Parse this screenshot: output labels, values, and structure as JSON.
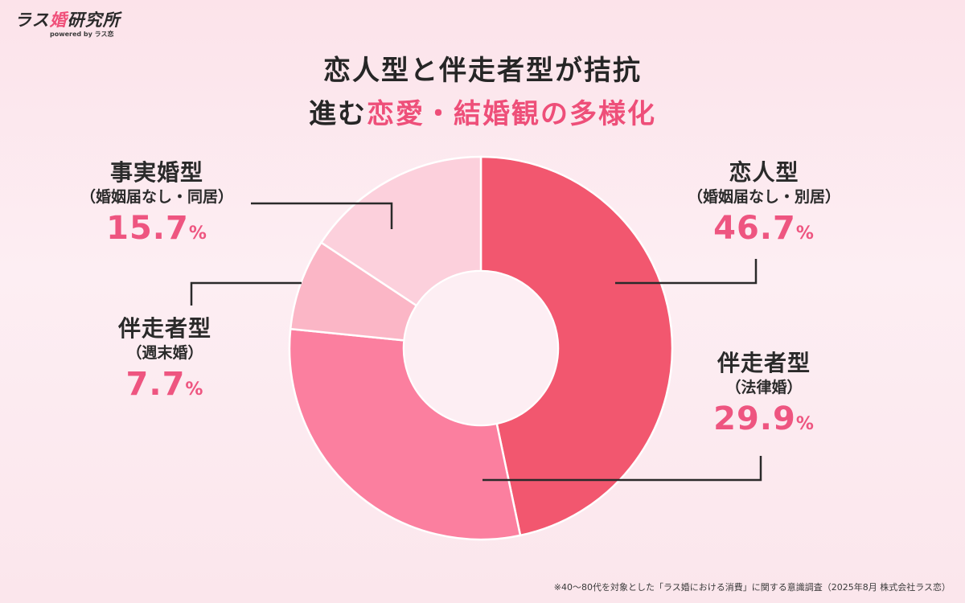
{
  "brand": {
    "logo_main_pre": "ラス",
    "logo_main_hl": "婚",
    "logo_main_post": "研究所",
    "logo_sub": "powered by ラス恋"
  },
  "title": {
    "line1": "恋人型と伴走者型が拮抗",
    "line2_pre": "進む",
    "line2_accent": "恋愛・結婚観の多様化"
  },
  "colors": {
    "slice_0": "#f2576f",
    "slice_1": "#fb7f9f",
    "slice_2": "#fbb6c6",
    "slice_3": "#fcd0dc",
    "accent": "#ee5580",
    "leader": "#2a2a2a"
  },
  "chart_data": {
    "type": "pie",
    "style": "donut",
    "title": "恋人型と伴走者型が拮抗 進む恋愛・結婚観の多様化",
    "unit": "%",
    "slices": [
      {
        "name": "恋人型",
        "sub": "（婚姻届なし・別居）",
        "value": 46.7,
        "value_label": "46.7"
      },
      {
        "name": "伴走者型",
        "sub": "（法律婚）",
        "value": 29.9,
        "value_label": "29.9"
      },
      {
        "name": "伴走者型",
        "sub": "（週末婚）",
        "value": 7.7,
        "value_label": "7.7"
      },
      {
        "name": "事実婚型",
        "sub": "（婚姻届なし・同居）",
        "value": 15.7,
        "value_label": "15.7"
      }
    ]
  },
  "footnote": "※40～80代を対象とした「ラス婚における消費」に関する意識調査（2025年8月 株式会社ラス恋）"
}
